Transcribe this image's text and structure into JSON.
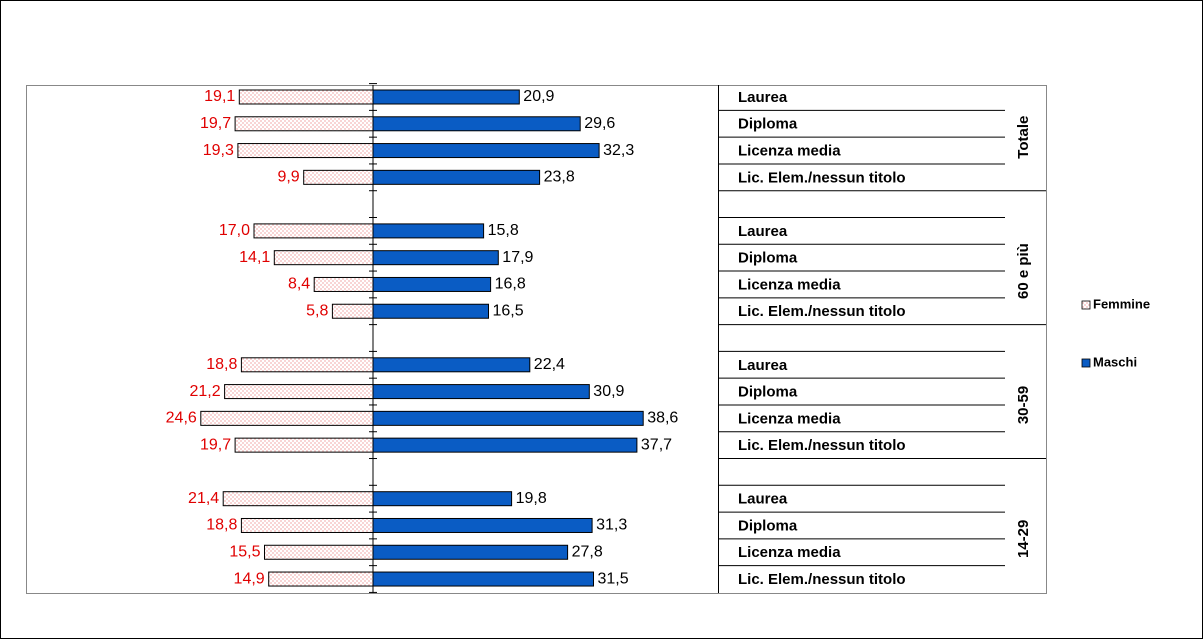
{
  "chart_data": {
    "type": "butterfly",
    "groups": [
      {
        "name": "Totale",
        "categories": [
          "Laurea",
          "Diploma",
          "Licenza media",
          "Lic. Elem./nessun titolo"
        ]
      },
      {
        "name": "60 e più",
        "categories": [
          "Laurea",
          "Diploma",
          "Licenza media",
          "Lic. Elem./nessun titolo"
        ]
      },
      {
        "name": "30-59",
        "categories": [
          "Laurea",
          "Diploma",
          "Licenza media",
          "Lic. Elem./nessun titolo"
        ]
      },
      {
        "name": "14-29",
        "categories": [
          "Laurea",
          "Diploma",
          "Licenza media",
          "Lic. Elem./nessun titolo"
        ]
      }
    ],
    "series": [
      {
        "name": "Femmine",
        "color": "#f4b8b8",
        "values": [
          19.1,
          19.7,
          19.3,
          9.9,
          17.0,
          14.1,
          8.4,
          5.8,
          18.8,
          21.2,
          24.6,
          19.7,
          21.4,
          18.8,
          15.5,
          14.9
        ],
        "value_labels": [
          "19,1",
          "19,7",
          "19,3",
          "9,9",
          "17,0",
          "14,1",
          "8,4",
          "5,8",
          "18,8",
          "21,2",
          "24,6",
          "19,7",
          "21,4",
          "18,8",
          "15,5",
          "14,9"
        ]
      },
      {
        "name": "Maschi",
        "color": "#0a5cc4",
        "values": [
          20.9,
          29.6,
          32.3,
          23.8,
          15.8,
          17.9,
          16.8,
          16.5,
          22.4,
          30.9,
          38.6,
          37.7,
          19.8,
          31.3,
          27.8,
          31.5
        ],
        "value_labels": [
          "20,9",
          "29,6",
          "32,3",
          "23,8",
          "15,8",
          "17,9",
          "16,8",
          "16,5",
          "22,4",
          "30,9",
          "38,6",
          "37,7",
          "19,8",
          "31,3",
          "27,8",
          "31,5"
        ]
      }
    ],
    "xlim": [
      -50,
      50
    ],
    "legend": "right"
  }
}
